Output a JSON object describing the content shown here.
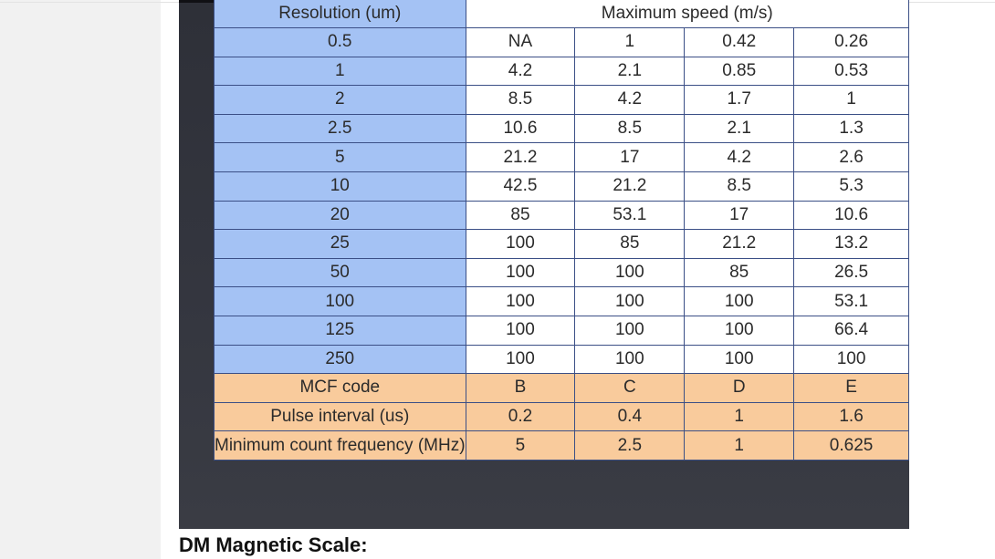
{
  "table": {
    "header_left": "Resolution (um)",
    "header_right": "Maximum speed (m/s)",
    "rows": [
      [
        "0.5",
        "NA",
        "1",
        "0.42",
        "0.26"
      ],
      [
        "1",
        "4.2",
        "2.1",
        "0.85",
        "0.53"
      ],
      [
        "2",
        "8.5",
        "4.2",
        "1.7",
        "1"
      ],
      [
        "2.5",
        "10.6",
        "8.5",
        "2.1",
        "1.3"
      ],
      [
        "5",
        "21.2",
        "17",
        "4.2",
        "2.6"
      ],
      [
        "10",
        "42.5",
        "21.2",
        "8.5",
        "5.3"
      ],
      [
        "20",
        "85",
        "53.1",
        "17",
        "10.6"
      ],
      [
        "25",
        "100",
        "85",
        "21.2",
        "13.2"
      ],
      [
        "50",
        "100",
        "100",
        "85",
        "26.5"
      ],
      [
        "100",
        "100",
        "100",
        "100",
        "53.1"
      ],
      [
        "125",
        "100",
        "100",
        "100",
        "66.4"
      ],
      [
        "250",
        "100",
        "100",
        "100",
        "100"
      ]
    ],
    "footer_rows": [
      [
        "MCF code",
        "B",
        "C",
        "D",
        "E"
      ],
      [
        "Pulse interval (us)",
        "0.2",
        "0.4",
        "1",
        "1.6"
      ],
      [
        "Minimum count frequency (MHz)",
        "5",
        "2.5",
        "1",
        "0.625"
      ]
    ]
  },
  "caption": "DM Magnetic Scale:",
  "colors": {
    "resolution_column": "#a4c2f4",
    "value_cells": "#ffffff",
    "footer_cells": "#f9cb9c",
    "slide_background": "#33353d",
    "cell_border": "#3b4f86"
  }
}
